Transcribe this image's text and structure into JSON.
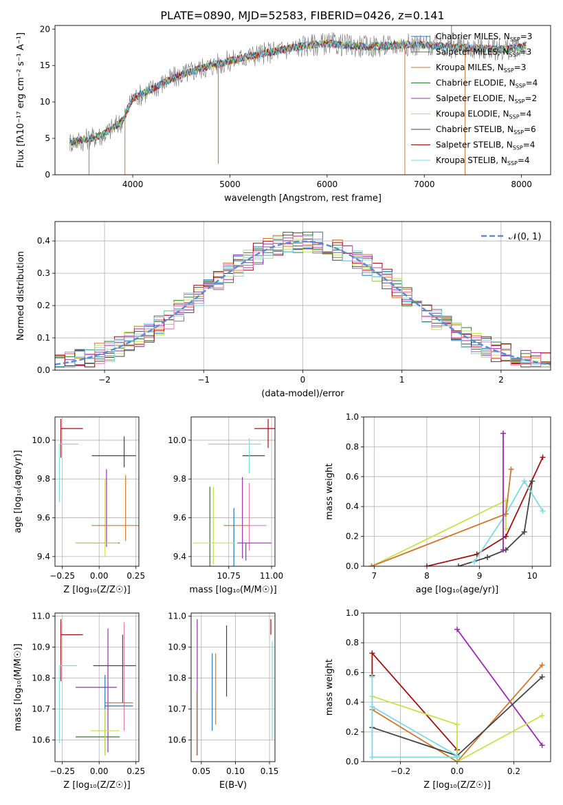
{
  "figure_title": "PLATE=0890, MJD=52583, FIBERID=0426, z=0.141",
  "colors": {
    "Chabrier MILES": "#1f77b4",
    "Salpeter MILES": "#777777",
    "Kroupa MILES": "#d0752a",
    "Chabrier ELODIE": "#2c7a2c",
    "Salpeter ELODIE": "#9a2ab0",
    "Kroupa ELODIE": "#c8e04a",
    "Chabrier STELIB": "#444444",
    "Salpeter STELIB": "#a01010",
    "Kroupa STELIB": "#7fd7df",
    "gauss": "#5b8bd6",
    "pink": "#e377c2"
  },
  "chart_data": [
    {
      "id": "spectrum",
      "type": "line",
      "xlabel": "wavelength [Angstrom, rest frame]",
      "ylabel": "Flux [fλ10⁻¹⁷ erg cm⁻² s⁻¹ A⁻¹]",
      "xlim": [
        3200,
        8300
      ],
      "ylim": [
        0,
        20.5
      ],
      "xticks": [
        4000,
        5000,
        6000,
        7000,
        8000
      ],
      "yticks": [
        0,
        5,
        10,
        15,
        20
      ],
      "legend": "upper right",
      "x": [
        3350,
        3500,
        3700,
        3900,
        4000,
        4200,
        4400,
        4600,
        4800,
        5000,
        5200,
        5400,
        5600,
        5800,
        6000,
        6200,
        6400,
        6600,
        6800,
        7000,
        7200,
        7400,
        7600,
        7800,
        8000,
        8050
      ],
      "y": [
        4.5,
        4.8,
        5.5,
        7.5,
        10.5,
        11.8,
        13.2,
        14.2,
        15.0,
        15.6,
        16.3,
        16.8,
        17.3,
        17.8,
        18.0,
        17.8,
        17.6,
        17.7,
        17.9,
        17.8,
        17.6,
        17.5,
        17.3,
        17.2,
        17.5,
        17.8
      ],
      "series": [
        {
          "name": "Chabrier MILES, N",
          "sub": "SSP",
          "suffix": "=3"
        },
        {
          "name": "Salpeter MILES, N",
          "sub": "SSP",
          "suffix": "=3"
        },
        {
          "name": "Kroupa MILES, N",
          "sub": "SSP",
          "suffix": "=3"
        },
        {
          "name": "Chabrier ELODIE, N",
          "sub": "SSP",
          "suffix": "=4"
        },
        {
          "name": "Salpeter ELODIE, N",
          "sub": "SSP",
          "suffix": "=2"
        },
        {
          "name": "Kroupa ELODIE, N",
          "sub": "SSP",
          "suffix": "=4"
        },
        {
          "name": "Chabrier STELIB, N",
          "sub": "SSP",
          "suffix": "=6"
        },
        {
          "name": "Salpeter STELIB, N",
          "sub": "SSP",
          "suffix": "=4"
        },
        {
          "name": "Kroupa STELIB, N",
          "sub": "SSP",
          "suffix": "=4"
        }
      ]
    },
    {
      "id": "residuals",
      "type": "line",
      "xlabel": "(data-model)/error",
      "ylabel": "Normed distribution",
      "xlim": [
        -2.5,
        2.5
      ],
      "ylim": [
        0,
        0.46
      ],
      "xticks": [
        -2,
        -1,
        0,
        1,
        2
      ],
      "yticks": [
        0.0,
        0.1,
        0.2,
        0.3,
        0.4
      ],
      "grid": true,
      "legend": "upper right",
      "gauss_label": "𝒩(0, 1)"
    },
    {
      "id": "age_Z",
      "type": "scatter",
      "xlabel": "Z [log₁₀(Z/Z☉)]",
      "ylabel": "age  [log₁₀(age/yr)]",
      "xlim": [
        -0.3,
        0.27
      ],
      "ylim": [
        9.35,
        10.12
      ],
      "xticks": [
        -0.25,
        0.0,
        0.25
      ],
      "xtick_labels": [
        "−0.25",
        "0.00",
        "0.25"
      ],
      "yticks": [
        9.4,
        9.6,
        9.8,
        10.0
      ],
      "grid": true,
      "points": [
        {
          "x": -0.26,
          "y": 10.06,
          "xerr": [
            0.0,
            0.15
          ],
          "yerr": [
            0.15,
            0.05
          ],
          "color": "#a01010"
        },
        {
          "x": -0.27,
          "y": 9.98,
          "xerr": [
            0.0,
            0.13
          ],
          "yerr": [
            0.3,
            0.0
          ],
          "color": "#7fd7df"
        },
        {
          "x": 0.17,
          "y": 9.92,
          "xerr": [
            0.22,
            0.08
          ],
          "yerr": [
            0.06,
            0.1
          ],
          "color": "#444444"
        },
        {
          "x": 0.05,
          "y": 9.73,
          "xerr": [
            0.0,
            0.0
          ],
          "yerr": [
            0.28,
            0.12
          ],
          "color": "#9a2ab0"
        },
        {
          "x": 0.04,
          "y": 9.6,
          "xerr": [
            0.0,
            0.0
          ],
          "yerr": [
            0.2,
            0.2
          ],
          "color": "#c8e04a"
        },
        {
          "x": 0.18,
          "y": 9.56,
          "xerr": [
            0.23,
            0.09
          ],
          "yerr": [
            0.08,
            0.26
          ],
          "color": "#d0752a"
        },
        {
          "x": -0.06,
          "y": 9.47,
          "xerr": [
            0.1,
            0.2
          ],
          "yerr": [
            0.0,
            0.0
          ],
          "color": "#9a2ab0"
        },
        {
          "x": 0.04,
          "y": 9.47,
          "xerr": [
            0.2,
            0.09
          ],
          "yerr": [
            0.0,
            0.0
          ],
          "color": "#c8e04a"
        }
      ]
    },
    {
      "id": "age_mass",
      "type": "scatter",
      "xlabel": "mass [log₁₀(M/M☉)]",
      "ylabel": "",
      "xlim": [
        10.53,
        11.02
      ],
      "ylim": [
        9.35,
        10.12
      ],
      "xticks": [
        10.75,
        11.0
      ],
      "xtick_labels": [
        "10.75",
        "11.00"
      ],
      "yticks": [
        9.4,
        9.6,
        9.8,
        10.0
      ],
      "grid": true,
      "points": [
        {
          "x": 10.98,
          "y": 10.06,
          "xerr": [
            0.08,
            0.04
          ],
          "yerr": [
            0.1,
            0.05
          ],
          "color": "#a01010"
        },
        {
          "x": 10.87,
          "y": 9.98,
          "xerr": [
            0.24,
            0.07
          ],
          "yerr": [
            0.14,
            0.03
          ],
          "color": "#7fd7df"
        },
        {
          "x": 10.93,
          "y": 9.92,
          "xerr": [
            0.1,
            0.03
          ],
          "yerr": [
            0.0,
            0.0
          ],
          "color": "#444444"
        },
        {
          "x": 10.87,
          "y": 9.9,
          "xerr": [
            0.0,
            0.0
          ],
          "yerr": [
            0.07,
            0.04
          ],
          "color": "#7fd7df"
        },
        {
          "x": 10.87,
          "y": 9.56,
          "xerr": [
            0.0,
            0.1
          ],
          "yerr": [
            0.13,
            0.22
          ],
          "color": "#e377c2"
        },
        {
          "x": 10.82,
          "y": 9.56,
          "xerr": [
            0.1,
            0.05
          ],
          "yerr": [
            0.0,
            0.0
          ],
          "color": "#d0752a"
        },
        {
          "x": 10.83,
          "y": 9.64,
          "xerr": [
            0.0,
            0.0
          ],
          "yerr": [
            0.25,
            0.17
          ],
          "color": "#9a2ab0"
        },
        {
          "x": 10.78,
          "y": 9.56,
          "xerr": [
            0.0,
            0.0
          ],
          "yerr": [
            0.33,
            0.09
          ],
          "color": "#1f77b4"
        },
        {
          "x": 10.64,
          "y": 9.56,
          "xerr": [
            0.0,
            0.0
          ],
          "yerr": [
            0.25,
            0.2
          ],
          "color": "#2c7a2c"
        },
        {
          "x": 10.66,
          "y": 9.56,
          "xerr": [
            0.0,
            0.0
          ],
          "yerr": [
            0.2,
            0.2
          ],
          "color": "#c8e04a"
        },
        {
          "x": 10.69,
          "y": 9.47,
          "xerr": [
            0.15,
            0.1
          ],
          "yerr": [
            0.0,
            0.0
          ],
          "color": "#c8e04a"
        },
        {
          "x": 10.85,
          "y": 9.47,
          "xerr": [
            0.05,
            0.15
          ],
          "yerr": [
            0.09,
            0.0
          ],
          "color": "#9a2ab0"
        }
      ]
    },
    {
      "id": "weight_age",
      "type": "line",
      "xlabel": "age  [log₁₀(age/yr)]",
      "ylabel": "mass weight",
      "xlim": [
        6.8,
        10.35
      ],
      "ylim": [
        0,
        1.0
      ],
      "xticks": [
        7,
        8,
        9,
        10
      ],
      "yticks": [
        0.0,
        0.2,
        0.4,
        0.6,
        0.8,
        1.0
      ],
      "grid": true,
      "series": [
        {
          "color": "#a01010",
          "x": [
            8.0,
            8.95,
            9.5,
            10.2
          ],
          "y": [
            0.0,
            0.08,
            0.2,
            0.73
          ]
        },
        {
          "color": "#444444",
          "x": [
            8.6,
            9.15,
            9.5,
            9.85,
            10.0
          ],
          "y": [
            0.0,
            0.06,
            0.11,
            0.23,
            0.57
          ]
        },
        {
          "color": "#7fd7df",
          "x": [
            8.9,
            9.5,
            9.85,
            10.2
          ],
          "y": [
            0.03,
            0.35,
            0.57,
            0.37
          ]
        },
        {
          "color": "#c8e04a",
          "x": [
            6.95,
            9.5,
            9.5
          ],
          "y": [
            0.0,
            0.44,
            0.25
          ]
        },
        {
          "color": "#d0752a",
          "x": [
            6.95,
            9.5,
            9.6
          ],
          "y": [
            0.0,
            0.35,
            0.65
          ]
        },
        {
          "color": "#9a2ab0",
          "x": [
            9.45,
            9.45
          ],
          "y": [
            0.11,
            0.89
          ]
        }
      ]
    },
    {
      "id": "mass_Z",
      "type": "scatter",
      "xlabel": "Z [log₁₀(Z/Z☉)]",
      "ylabel": "mass [log₁₀(M/M☉)]",
      "xlim": [
        -0.3,
        0.27
      ],
      "ylim": [
        10.53,
        11.01
      ],
      "xticks": [
        -0.25,
        0.0,
        0.25
      ],
      "xtick_labels": [
        "−0.25",
        "0.00",
        "0.25"
      ],
      "yticks": [
        10.6,
        10.7,
        10.8,
        10.9,
        11.0
      ],
      "grid": true,
      "points": [
        {
          "x": -0.26,
          "y": 10.94,
          "xerr": [
            0.0,
            0.15
          ],
          "yerr": [
            0.15,
            0.05
          ],
          "color": "#a01010"
        },
        {
          "x": -0.27,
          "y": 10.84,
          "xerr": [
            0.0,
            0.12
          ],
          "yerr": [
            0.25,
            0.0
          ],
          "color": "#7fd7df"
        },
        {
          "x": 0.16,
          "y": 10.84,
          "xerr": [
            0.2,
            0.09
          ],
          "yerr": [
            0.12,
            0.1
          ],
          "color": "#444444"
        },
        {
          "x": 0.06,
          "y": 10.84,
          "xerr": [
            0.0,
            0.0
          ],
          "yerr": [
            0.28,
            0.12
          ],
          "color": "#9a2ab0"
        },
        {
          "x": -0.07,
          "y": 10.77,
          "xerr": [
            0.09,
            0.19
          ],
          "yerr": [
            0.0,
            0.0
          ],
          "color": "#9a2ab0"
        },
        {
          "x": 0.04,
          "y": 10.75,
          "xerr": [
            0.0,
            0.0
          ],
          "yerr": [
            0.2,
            0.06
          ],
          "color": "#1f77b4"
        },
        {
          "x": 0.17,
          "y": 10.81,
          "xerr": [
            0.0,
            0.0
          ],
          "yerr": [
            0.18,
            0.17
          ],
          "color": "#e377c2"
        },
        {
          "x": 0.13,
          "y": 10.72,
          "xerr": [
            0.09,
            0.1
          ],
          "yerr": [
            0.0,
            0.0
          ],
          "color": "#d0752a"
        },
        {
          "x": 0.13,
          "y": 10.71,
          "xerr": [
            0.09,
            0.1
          ],
          "yerr": [
            0.0,
            0.0
          ],
          "color": "#1f77b4"
        },
        {
          "x": 0.04,
          "y": 10.63,
          "xerr": [
            0.1,
            0.1
          ],
          "yerr": [
            0.0,
            0.0
          ],
          "color": "#c8e04a"
        },
        {
          "x": 0.04,
          "y": 10.61,
          "xerr": [
            0.2,
            0.1
          ],
          "yerr": [
            0.0,
            0.0
          ],
          "color": "#2c7a2c"
        },
        {
          "x": 0.04,
          "y": 10.6,
          "xerr": [
            0.0,
            0.0
          ],
          "yerr": [
            0.05,
            0.1
          ],
          "color": "#c8e04a"
        }
      ]
    },
    {
      "id": "mass_ebv",
      "type": "scatter",
      "xlabel": "E(B-V)",
      "ylabel": "",
      "xlim": [
        0.035,
        0.158
      ],
      "ylim": [
        10.53,
        11.01
      ],
      "xticks": [
        0.05,
        0.1,
        0.15
      ],
      "xtick_labels": [
        "0.05",
        "0.10",
        "0.15"
      ],
      "yticks": [
        10.6,
        10.7,
        10.8,
        10.9,
        11.0
      ],
      "grid": true,
      "points": [
        {
          "x": 0.044,
          "y": 10.85,
          "xerr": [
            0.0,
            0.0
          ],
          "yerr": [
            0.3,
            0.14
          ],
          "color": "#9a2ab0"
        },
        {
          "x": 0.043,
          "y": 10.65,
          "xerr": [
            0.0,
            0.0
          ],
          "yerr": [
            0.1,
            0.11
          ],
          "color": "#c8e04a"
        },
        {
          "x": 0.066,
          "y": 10.76,
          "xerr": [
            0.0,
            0.0
          ],
          "yerr": [
            0.13,
            0.12
          ],
          "color": "#1f77b4"
        },
        {
          "x": 0.071,
          "y": 10.76,
          "xerr": [
            0.0,
            0.0
          ],
          "yerr": [
            0.11,
            0.12
          ],
          "color": "#d0752a"
        },
        {
          "x": 0.087,
          "y": 10.85,
          "xerr": [
            0.0,
            0.0
          ],
          "yerr": [
            0.11,
            0.12
          ],
          "color": "#444444"
        },
        {
          "x": 0.152,
          "y": 10.94,
          "xerr": [
            0.0,
            0.0
          ],
          "yerr": [
            0.0,
            0.05
          ],
          "color": "#a01010"
        },
        {
          "x": 0.154,
          "y": 10.76,
          "xerr": [
            0.0,
            0.0
          ],
          "yerr": [
            0.16,
            0.16
          ],
          "color": "#7fd7df"
        }
      ]
    },
    {
      "id": "weight_Z",
      "type": "line",
      "xlabel": "Z [log₁₀(Z/Z☉)]",
      "ylabel": "mass weight",
      "xlim": [
        -0.33,
        0.33
      ],
      "ylim": [
        0,
        1.0
      ],
      "xticks": [
        -0.2,
        0.0,
        0.2
      ],
      "xtick_labels": [
        "−0.2",
        "0.0",
        "0.2"
      ],
      "yticks": [
        0.0,
        0.2,
        0.4,
        0.6,
        0.8,
        1.0
      ],
      "grid": true,
      "series": [
        {
          "color": "#a01010",
          "x": [
            -0.3,
            -0.3,
            0.0,
            0.0
          ],
          "y": [
            0.58,
            0.73,
            0.08,
            0.0
          ]
        },
        {
          "color": "#9a2ab0",
          "x": [
            0.0,
            0.3
          ],
          "y": [
            0.89,
            0.11
          ]
        },
        {
          "color": "#d0752a",
          "x": [
            -0.3,
            0.0,
            0.3
          ],
          "y": [
            0.35,
            0.0,
            0.65
          ]
        },
        {
          "color": "#444444",
          "x": [
            -0.3,
            0.0,
            0.3
          ],
          "y": [
            0.23,
            0.04,
            0.57
          ]
        },
        {
          "color": "#c8e04a",
          "x": [
            -0.3,
            0.0,
            0.0,
            0.3
          ],
          "y": [
            0.44,
            0.25,
            0.0,
            0.31
          ]
        },
        {
          "color": "#7fd7df",
          "x": [
            -0.3,
            -0.3,
            0.0
          ],
          "y": [
            0.57,
            0.03,
            0.03
          ]
        },
        {
          "color": "#7fd7df",
          "x": [
            -0.3,
            0.0
          ],
          "y": [
            0.37,
            0.04
          ]
        }
      ]
    }
  ]
}
